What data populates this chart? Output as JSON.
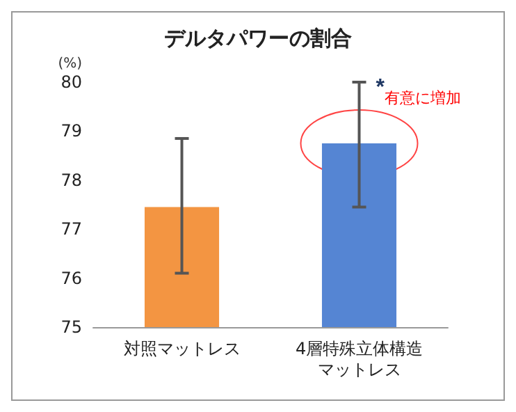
{
  "chart_data": {
    "type": "bar",
    "title": "デルタパワーの割合",
    "ylabel": "(%)",
    "categories": [
      "対照マットレス",
      "4層特殊立体構造マットレス"
    ],
    "values": [
      77.45,
      78.75
    ],
    "colors": [
      "#f39542",
      "#5585d3"
    ],
    "errors": [
      [
        76.1,
        78.85
      ],
      [
        77.45,
        80.0
      ]
    ],
    "ylim": [
      75,
      80
    ],
    "yticks": [
      75,
      76,
      77,
      78,
      79,
      80
    ],
    "grid": false,
    "annotations": [
      {
        "text": "*",
        "x": "4層特殊立体構造マットレス",
        "y": 80.0
      },
      {
        "text": "有意に増加",
        "x": "4層特殊立体構造マットレス",
        "y": 79.2
      }
    ]
  }
}
